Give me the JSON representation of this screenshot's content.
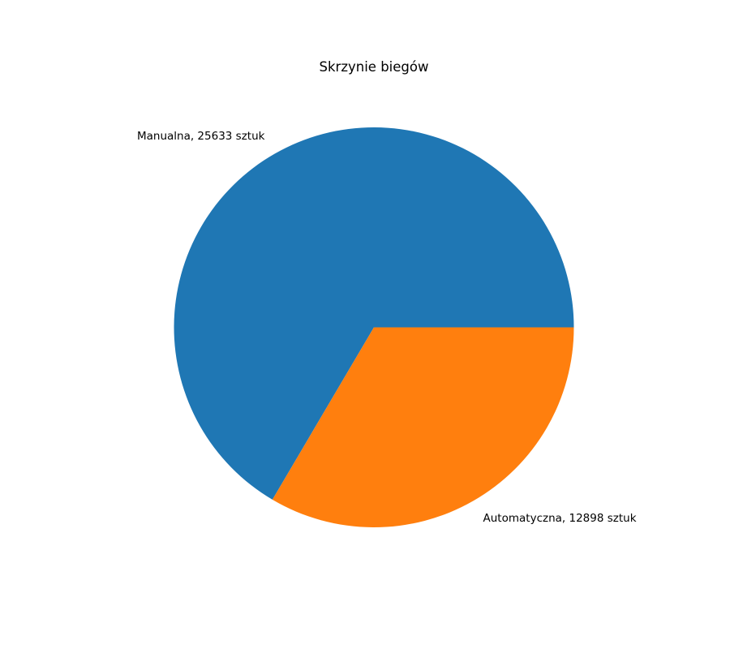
{
  "chart_data": {
    "type": "pie",
    "title": "Skrzynie biegów",
    "slices": [
      {
        "label": "Manualna, 25633 sztuk",
        "category": "Manualna",
        "value": 25633,
        "color": "#1f77b4"
      },
      {
        "label": "Automatyczna, 12898 sztuk",
        "category": "Automatyczna",
        "value": 12898,
        "color": "#ff7f0e"
      }
    ],
    "start_angle": 0,
    "direction": "counterclockwise",
    "legend": "none"
  }
}
